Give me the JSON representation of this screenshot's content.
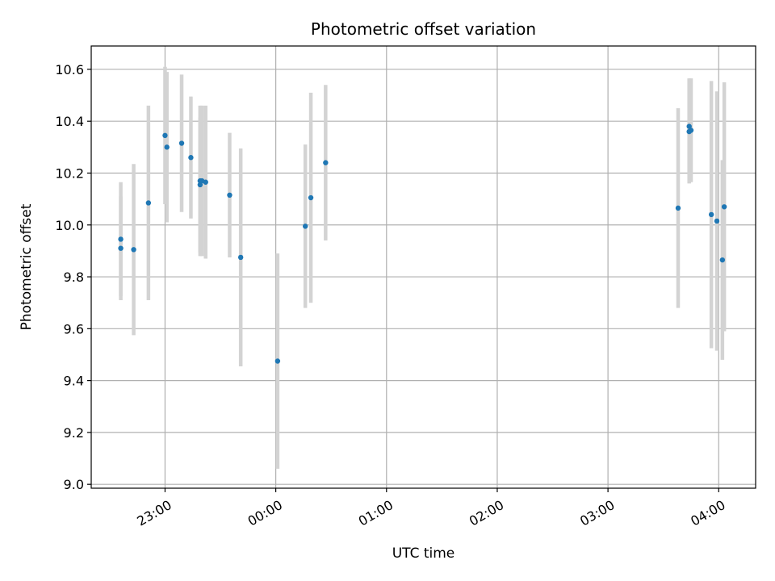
{
  "chart_data": {
    "type": "scatter",
    "title": "Photometric offset variation",
    "xlabel": "UTC time",
    "ylabel": "Photometric offset",
    "x_axis": "time",
    "xlim": [
      "22:20",
      "04:20"
    ],
    "ylim": [
      8.985,
      10.69
    ],
    "xticks": [
      "23:00",
      "00:00",
      "01:00",
      "02:00",
      "03:00",
      "04:00"
    ],
    "yticks": [
      9.0,
      9.2,
      9.4,
      9.6,
      9.8,
      10.0,
      10.2,
      10.4,
      10.6
    ],
    "ytick_labels": [
      "9.0",
      "9.2",
      "9.4",
      "9.6",
      "9.8",
      "10.0",
      "10.2",
      "10.4",
      "10.6"
    ],
    "grid": true,
    "series": [
      {
        "x": [
          "22:36",
          "22:36",
          "22:43",
          "22:51",
          "23:00",
          "23:01",
          "23:09",
          "23:14",
          "23:19",
          "23:19",
          "23:20",
          "23:22",
          "23:35",
          "23:41",
          "00:01",
          "00:16",
          "00:19",
          "00:27",
          "03:38",
          "03:44",
          "03:44",
          "03:45",
          "03:56",
          "03:59",
          "04:02",
          "04:03"
        ],
        "y": [
          9.91,
          9.945,
          9.905,
          10.085,
          10.345,
          10.3,
          10.315,
          10.26,
          10.155,
          10.17,
          10.17,
          10.165,
          10.115,
          9.875,
          9.475,
          9.995,
          10.105,
          10.24,
          10.065,
          10.36,
          10.38,
          10.365,
          10.04,
          10.015,
          9.865,
          10.07
        ],
        "yerr": [
          0.2,
          0.22,
          0.33,
          0.375,
          0.265,
          0.29,
          0.265,
          0.235,
          0.26,
          0.29,
          0.29,
          0.295,
          0.24,
          0.42,
          0.415,
          0.315,
          0.405,
          0.3,
          0.385,
          0.2,
          0.185,
          0.2,
          0.515,
          0.5,
          0.385,
          0.48
        ],
        "marker_color": "#1f77b4",
        "error_color": "#d3d3d3"
      }
    ]
  }
}
